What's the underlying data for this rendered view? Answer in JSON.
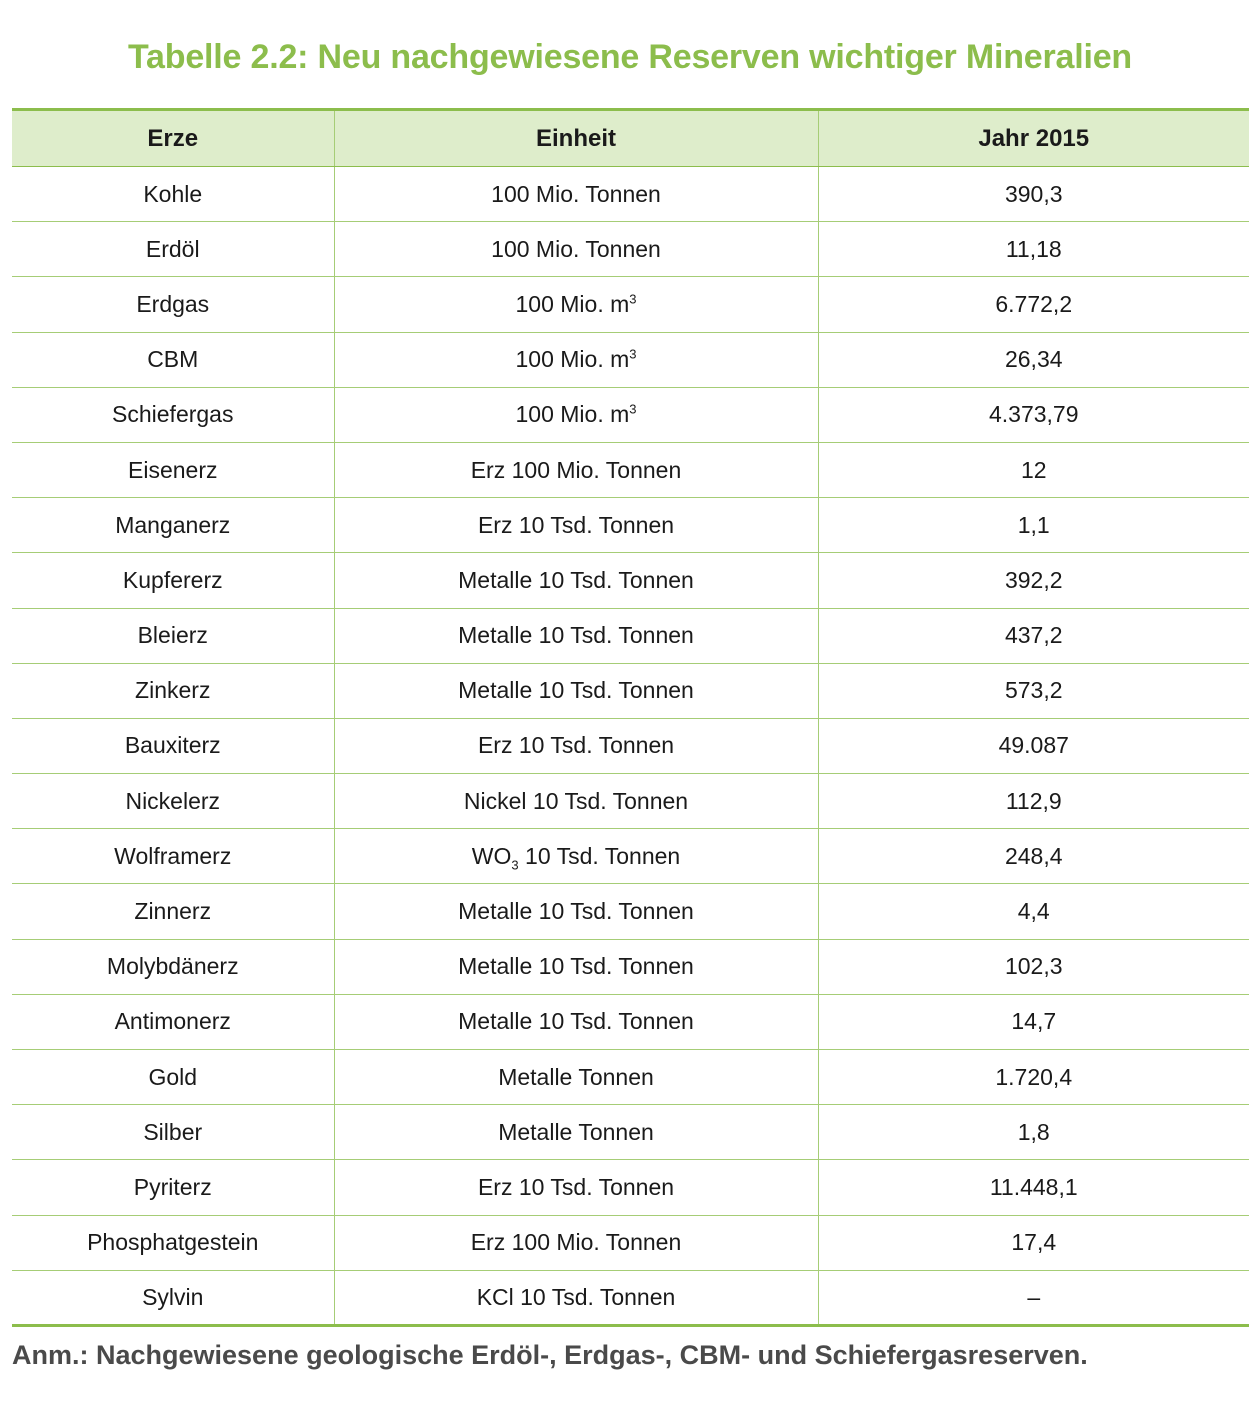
{
  "title": "Tabelle 2.2: Neu nachgewiesene Reserven wichtiger Mineralien",
  "table": {
    "headers": [
      "Erze",
      "Einheit",
      "Jahr 2015"
    ],
    "rows": [
      {
        "erz": "Kohle",
        "einheit": "100 Mio. Tonnen",
        "wert": "390,3"
      },
      {
        "erz": "Erdöl",
        "einheit": "100 Mio. Tonnen",
        "wert": "11,18"
      },
      {
        "erz": "Erdgas",
        "einheit": "100 Mio. m",
        "einheit_sup": "3",
        "wert": "6.772,2"
      },
      {
        "erz": "CBM",
        "einheit": "100 Mio. m",
        "einheit_sup": "3",
        "wert": "26,34"
      },
      {
        "erz": "Schiefergas",
        "einheit": "100 Mio. m",
        "einheit_sup": "3",
        "wert": "4.373,79"
      },
      {
        "erz": "Eisenerz",
        "einheit": "Erz 100 Mio. Tonnen",
        "wert": "12"
      },
      {
        "erz": "Manganerz",
        "einheit": "Erz 10 Tsd. Tonnen",
        "wert": "1,1"
      },
      {
        "erz": "Kupfererz",
        "einheit": "Metalle 10 Tsd. Tonnen",
        "wert": "392,2"
      },
      {
        "erz": "Bleierz",
        "einheit": "Metalle 10 Tsd. Tonnen",
        "wert": "437,2"
      },
      {
        "erz": "Zinkerz",
        "einheit": "Metalle 10 Tsd. Tonnen",
        "wert": "573,2"
      },
      {
        "erz": "Bauxiterz",
        "einheit": "Erz 10 Tsd. Tonnen",
        "wert": "49.087"
      },
      {
        "erz": "Nickelerz",
        "einheit": "Nickel 10 Tsd. Tonnen",
        "wert": "112,9"
      },
      {
        "erz": "Wolframerz",
        "einheit_pre": "WO",
        "einheit_sub": "3",
        "einheit": " 10 Tsd. Tonnen",
        "wert": "248,4"
      },
      {
        "erz": "Zinnerz",
        "einheit": "Metalle 10 Tsd. Tonnen",
        "wert": "4,4"
      },
      {
        "erz": "Molybdänerz",
        "einheit": "Metalle 10 Tsd. Tonnen",
        "wert": "102,3"
      },
      {
        "erz": "Antimonerz",
        "einheit": "Metalle 10 Tsd. Tonnen",
        "wert": "14,7"
      },
      {
        "erz": "Gold",
        "einheit": "Metalle Tonnen",
        "wert": "1.720,4"
      },
      {
        "erz": "Silber",
        "einheit": "Metalle Tonnen",
        "wert": "1,8"
      },
      {
        "erz": "Pyriterz",
        "einheit": "Erz 10 Tsd. Tonnen",
        "wert": "11.448,1"
      },
      {
        "erz": "Phosphatgestein",
        "einheit": "Erz 100 Mio. Tonnen",
        "wert": "17,4"
      },
      {
        "erz": "Sylvin",
        "einheit": "KCl 10 Tsd. Tonnen",
        "wert": "–"
      }
    ]
  },
  "note": "Anm.: Nachgewiesene geologische Erdöl-, Erdgas-, CBM- und Schiefergasreserven.",
  "colors": {
    "accent": "#8cbd4c",
    "header_bg": "#deedcb",
    "rule": "#a6cd76"
  }
}
